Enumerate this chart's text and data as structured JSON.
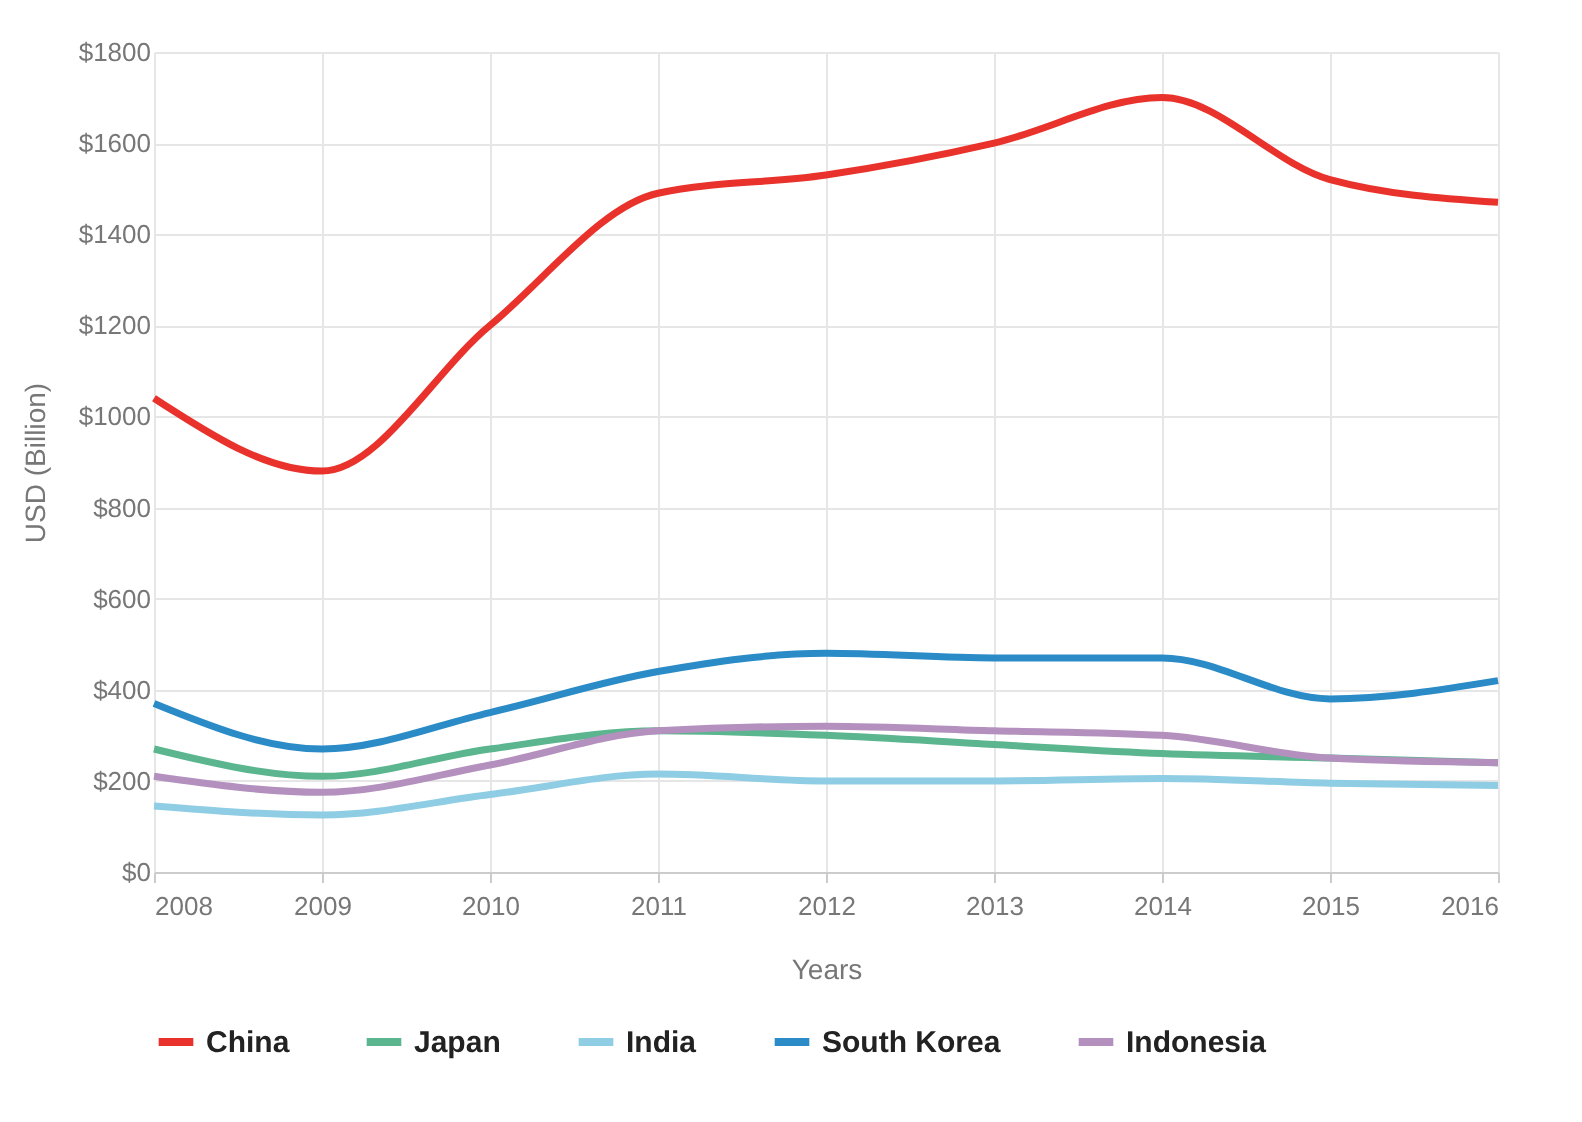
{
  "chart_data": {
    "type": "line",
    "xlabel": "Years",
    "ylabel": "USD (Billion)",
    "x": [
      2008,
      2009,
      2010,
      2011,
      2012,
      2013,
      2014,
      2015,
      2016
    ],
    "xlim": [
      2008,
      2016
    ],
    "xticks": [
      2008,
      2009,
      2010,
      2011,
      2012,
      2013,
      2014,
      2015,
      2016
    ],
    "ylim": [
      0,
      1800
    ],
    "yticks": [
      {
        "value": 0,
        "label": "$0"
      },
      {
        "value": 200,
        "label": "$200"
      },
      {
        "value": 400,
        "label": "$400"
      },
      {
        "value": 600,
        "label": "$600"
      },
      {
        "value": 800,
        "label": "$800"
      },
      {
        "value": 1000,
        "label": "$1000"
      },
      {
        "value": 1200,
        "label": "$1200"
      },
      {
        "value": 1400,
        "label": "$1400"
      },
      {
        "value": 1600,
        "label": "$1600"
      },
      {
        "value": 1800,
        "label": "$1800"
      }
    ],
    "grid": true,
    "legend": "bottom",
    "marker": "none",
    "line_style": "solid",
    "series": [
      {
        "name": "China",
        "color": "#e8322b",
        "values": [
          1040,
          880,
          1200,
          1490,
          1530,
          1600,
          1700,
          1520,
          1470
        ]
      },
      {
        "name": "Japan",
        "color": "#5bb58e",
        "values": [
          270,
          210,
          270,
          310,
          300,
          280,
          260,
          250,
          240
        ]
      },
      {
        "name": "India",
        "color": "#8ecde3",
        "values": [
          145,
          125,
          170,
          215,
          200,
          200,
          205,
          195,
          190
        ]
      },
      {
        "name": "South Korea",
        "color": "#2a8bc7",
        "values": [
          370,
          270,
          350,
          440,
          480,
          470,
          470,
          380,
          420
        ]
      },
      {
        "name": "Indonesia",
        "color": "#b390bd",
        "values": [
          210,
          175,
          235,
          310,
          320,
          310,
          300,
          250,
          240
        ]
      }
    ]
  }
}
